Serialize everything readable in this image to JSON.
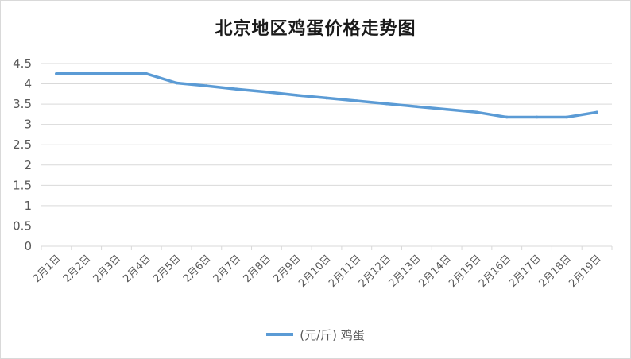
{
  "chart_data": {
    "type": "line",
    "title": "北京地区鸡蛋价格走势图",
    "categories": [
      "2月1日",
      "2月2日",
      "2月3日",
      "2月4日",
      "2月5日",
      "2月6日",
      "2月7日",
      "2月8日",
      "2月9日",
      "2月10日",
      "2月11日",
      "2月12日",
      "2月13日",
      "2月14日",
      "2月15日",
      "2月16日",
      "2月17日",
      "2月18日",
      "2月19日"
    ],
    "series": [
      {
        "name": "(元/斤) 鸡蛋",
        "values": [
          4.25,
          4.25,
          4.25,
          4.25,
          4.02,
          3.95,
          3.87,
          3.8,
          3.72,
          3.65,
          3.58,
          3.51,
          3.44,
          3.37,
          3.3,
          3.18,
          3.18,
          3.18,
          3.3
        ]
      }
    ],
    "ylim": [
      0,
      4.5
    ],
    "yticks": [
      "0",
      "0.5",
      "1",
      "1.5",
      "2",
      "2.5",
      "3",
      "3.5",
      "4",
      "4.5"
    ],
    "grid": true,
    "legend_position": "bottom",
    "line_color": "#5b9bd5"
  }
}
